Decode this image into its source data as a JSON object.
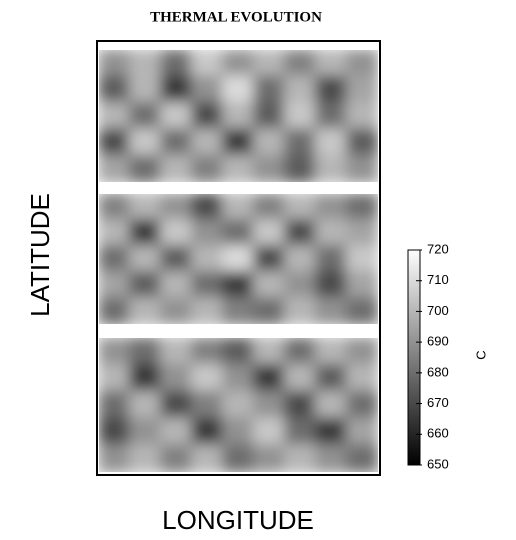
{
  "chart_data": {
    "type": "heatmap",
    "title": "THERMAL EVOLUTION",
    "x_label": "LONGITUDE",
    "y_label": "LATITUDE",
    "colorbar_label": "C",
    "clim": [
      650,
      720
    ],
    "cticks": [
      650,
      660,
      670,
      680,
      690,
      700,
      710,
      720
    ],
    "colors": [
      "#000000",
      "#ffffff"
    ],
    "panels": [
      {
        "values": [
          [
            690,
            700,
            680,
            705,
            690,
            700,
            685,
            700,
            690
          ],
          [
            675,
            700,
            665,
            690,
            710,
            680,
            700,
            670,
            695
          ],
          [
            700,
            680,
            705,
            670,
            700,
            675,
            705,
            680,
            700
          ],
          [
            670,
            705,
            680,
            700,
            665,
            700,
            680,
            705,
            675
          ],
          [
            695,
            680,
            700,
            685,
            700,
            690,
            675,
            700,
            690
          ]
        ]
      },
      {
        "values": [
          [
            685,
            700,
            690,
            670,
            700,
            685,
            700,
            690,
            680
          ],
          [
            700,
            665,
            705,
            690,
            680,
            705,
            670,
            700,
            695
          ],
          [
            680,
            700,
            675,
            700,
            710,
            670,
            700,
            680,
            705
          ],
          [
            695,
            675,
            700,
            680,
            665,
            700,
            690,
            670,
            695
          ],
          [
            680,
            700,
            690,
            700,
            685,
            680,
            700,
            690,
            680
          ]
        ]
      },
      {
        "values": [
          [
            690,
            680,
            700,
            685,
            675,
            700,
            680,
            700,
            690
          ],
          [
            700,
            665,
            690,
            705,
            690,
            665,
            700,
            675,
            700
          ],
          [
            680,
            700,
            670,
            685,
            700,
            690,
            670,
            700,
            680
          ],
          [
            670,
            690,
            700,
            665,
            690,
            705,
            680,
            665,
            695
          ],
          [
            690,
            700,
            685,
            700,
            680,
            690,
            700,
            690,
            680
          ]
        ]
      }
    ]
  }
}
